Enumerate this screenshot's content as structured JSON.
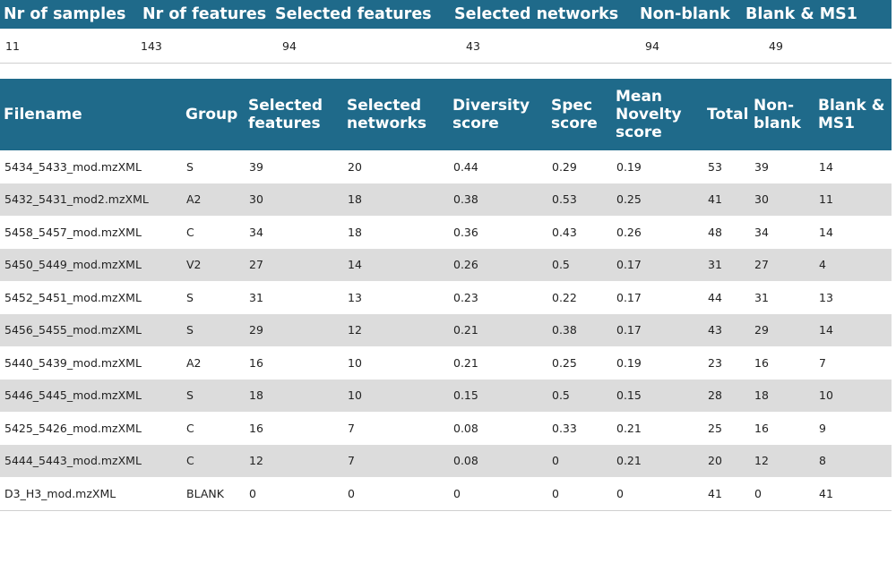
{
  "summary": {
    "headers": [
      "Nr of samples",
      "Nr of features",
      "Selected features",
      "Selected networks",
      "Non-blank",
      "Blank & MS1"
    ],
    "values": [
      "11",
      "143",
      "94",
      "43",
      "94",
      "49"
    ]
  },
  "samples": {
    "headers": [
      "Filename",
      "Group",
      "Selected features",
      "Selected networks",
      "Diversity score",
      "Spec score",
      "Mean Novelty score",
      "Total",
      "Non-blank",
      "Blank & MS1"
    ],
    "rows": [
      [
        "5434_5433_mod.mzXML",
        "S",
        "39",
        "20",
        "0.44",
        "0.29",
        "0.19",
        "53",
        "39",
        "14"
      ],
      [
        "5432_5431_mod2.mzXML",
        "A2",
        "30",
        "18",
        "0.38",
        "0.53",
        "0.25",
        "41",
        "30",
        "11"
      ],
      [
        "5458_5457_mod.mzXML",
        "C",
        "34",
        "18",
        "0.36",
        "0.43",
        "0.26",
        "48",
        "34",
        "14"
      ],
      [
        "5450_5449_mod.mzXML",
        "V2",
        "27",
        "14",
        "0.26",
        "0.5",
        "0.17",
        "31",
        "27",
        "4"
      ],
      [
        "5452_5451_mod.mzXML",
        "S",
        "31",
        "13",
        "0.23",
        "0.22",
        "0.17",
        "44",
        "31",
        "13"
      ],
      [
        "5456_5455_mod.mzXML",
        "S",
        "29",
        "12",
        "0.21",
        "0.38",
        "0.17",
        "43",
        "29",
        "14"
      ],
      [
        "5440_5439_mod.mzXML",
        "A2",
        "16",
        "10",
        "0.21",
        "0.25",
        "0.19",
        "23",
        "16",
        "7"
      ],
      [
        "5446_5445_mod.mzXML",
        "S",
        "18",
        "10",
        "0.15",
        "0.5",
        "0.15",
        "28",
        "18",
        "10"
      ],
      [
        "5425_5426_mod.mzXML",
        "C",
        "16",
        "7",
        "0.08",
        "0.33",
        "0.21",
        "25",
        "16",
        "9"
      ],
      [
        "5444_5443_mod.mzXML",
        "C",
        "12",
        "7",
        "0.08",
        "0",
        "0.21",
        "20",
        "12",
        "8"
      ],
      [
        "D3_H3_mod.mzXML",
        "BLANK",
        "0",
        "0",
        "0",
        "0",
        "0",
        "41",
        "0",
        "41"
      ]
    ]
  }
}
